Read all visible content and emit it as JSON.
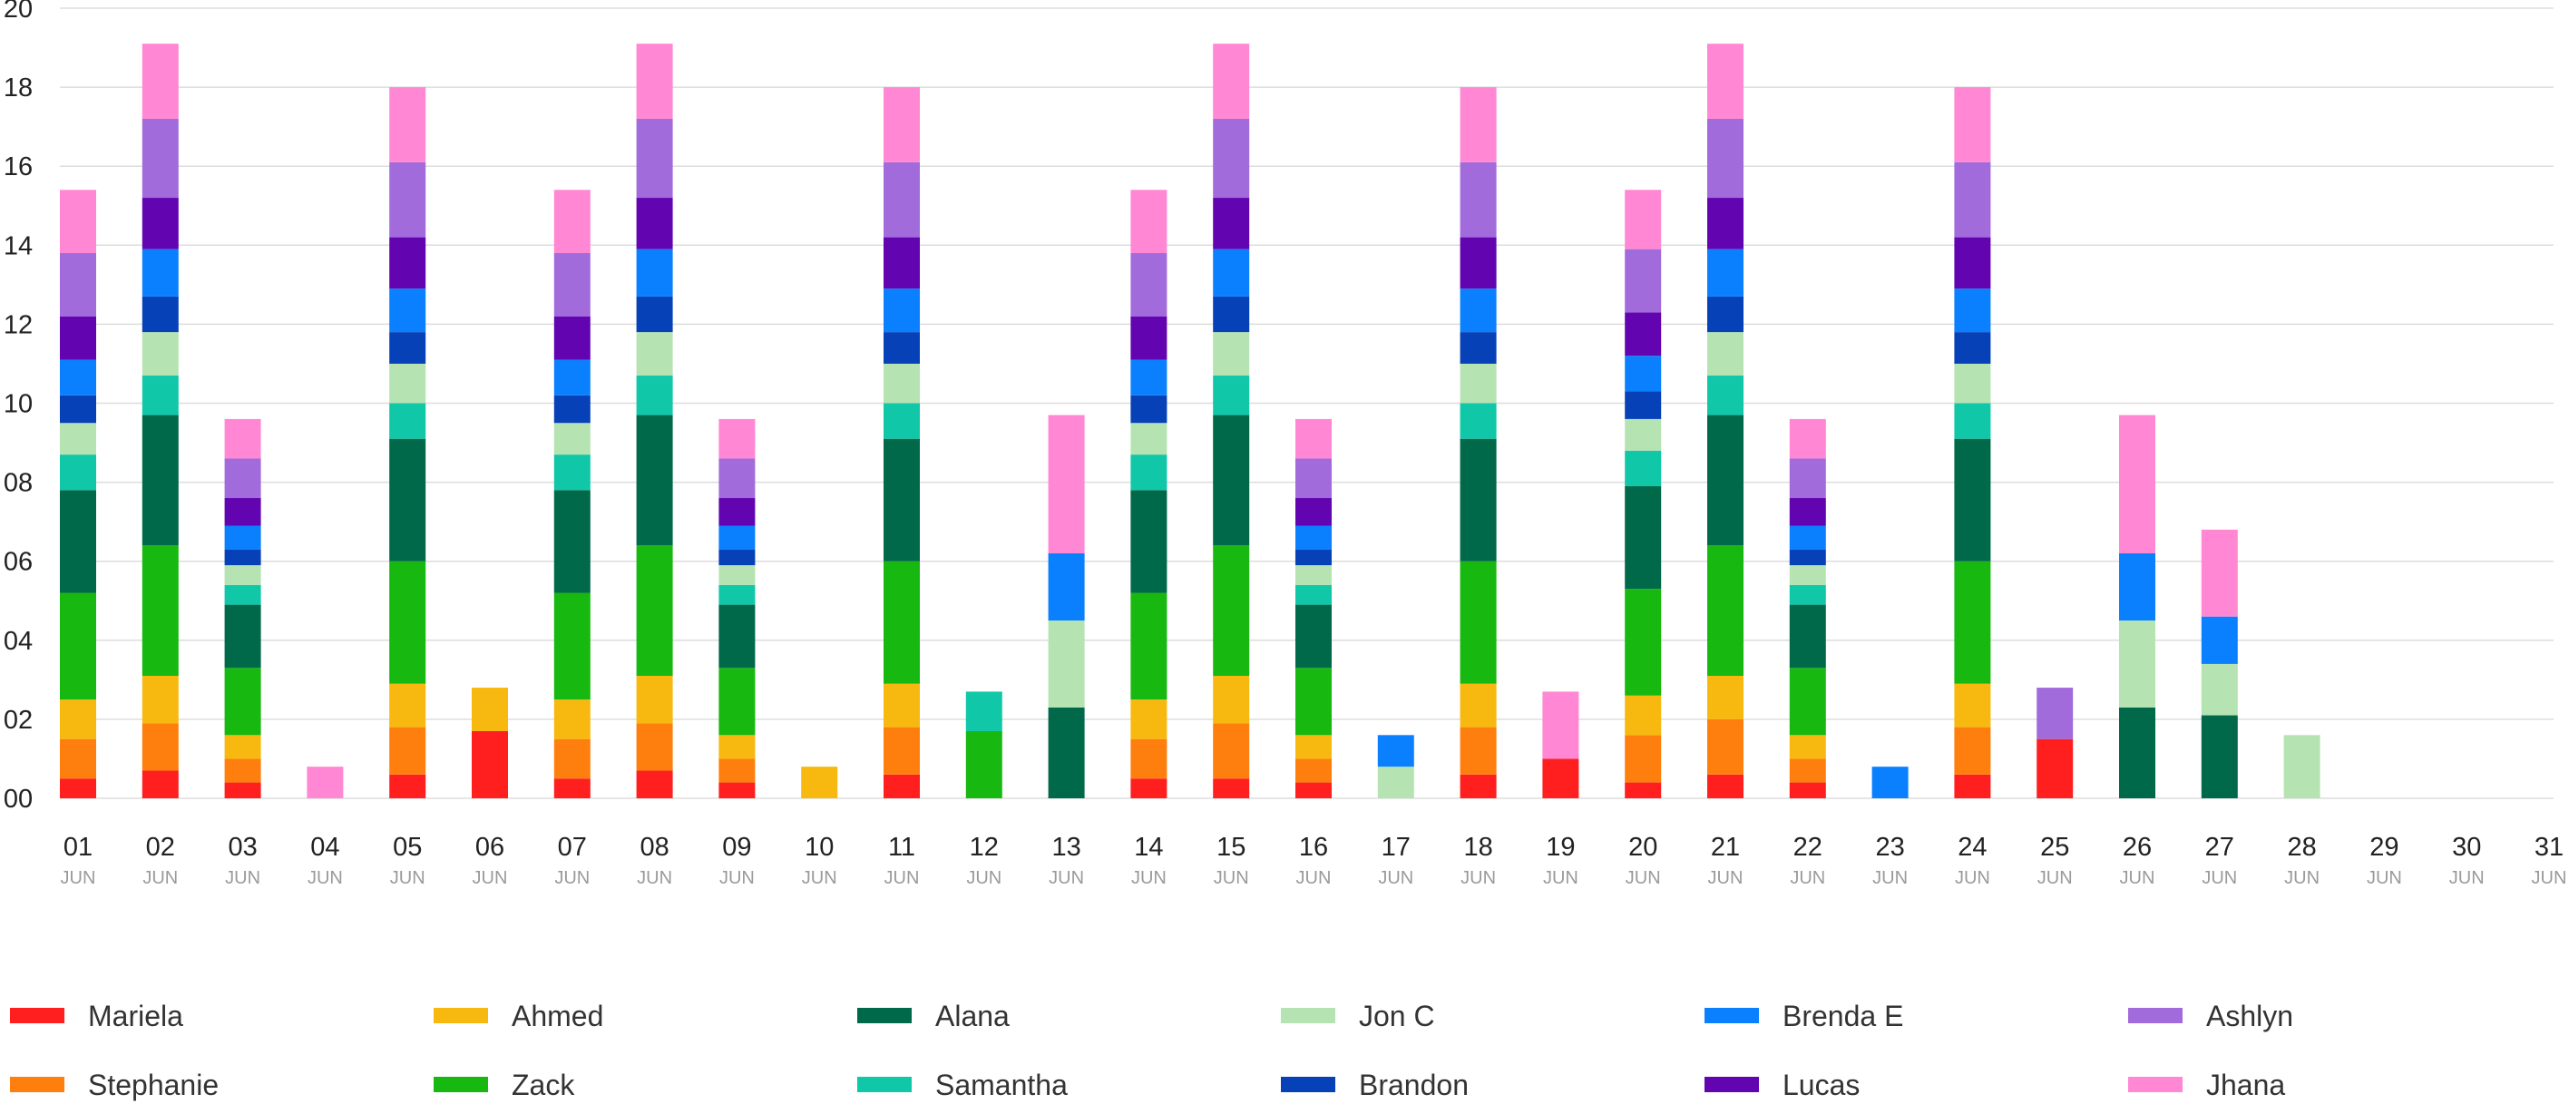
{
  "chart_data": {
    "type": "bar",
    "stacked": true,
    "title": "",
    "xlabel": "",
    "ylabel": "",
    "ylim": [
      0,
      20
    ],
    "y_ticks": [
      "00",
      "02",
      "04",
      "06",
      "08",
      "10",
      "12",
      "14",
      "16",
      "18",
      "20"
    ],
    "grid": true,
    "legend_position": "bottom",
    "month_label": "JUN",
    "categories": [
      "01",
      "02",
      "03",
      "04",
      "05",
      "06",
      "07",
      "08",
      "09",
      "10",
      "11",
      "12",
      "13",
      "14",
      "15",
      "16",
      "17",
      "18",
      "19",
      "20",
      "21",
      "22",
      "23",
      "24",
      "25",
      "26",
      "27",
      "28",
      "29",
      "30",
      "31"
    ],
    "series": [
      {
        "name": "Mariela",
        "color": "#ff1f1f",
        "values": [
          0.5,
          0.7,
          0.4,
          0,
          0.6,
          1.7,
          0.5,
          0.7,
          0.4,
          0,
          0.6,
          0,
          0,
          0.5,
          0.5,
          0.4,
          0,
          0.6,
          1.0,
          0.4,
          0.6,
          0.4,
          0,
          0.6,
          1.5,
          0,
          0,
          0,
          0,
          0,
          0
        ]
      },
      {
        "name": "Stephanie",
        "color": "#ff7f0e",
        "values": [
          1.0,
          1.2,
          0.6,
          0,
          1.2,
          0,
          1.0,
          1.2,
          0.6,
          0,
          1.2,
          0,
          0,
          1.0,
          1.4,
          0.6,
          0,
          1.2,
          0,
          1.2,
          1.4,
          0.6,
          0,
          1.2,
          0,
          0,
          0,
          0,
          0,
          0,
          0
        ]
      },
      {
        "name": "Ahmed",
        "color": "#f7b90f",
        "values": [
          1.0,
          1.2,
          0.6,
          0,
          1.1,
          1.1,
          1.0,
          1.2,
          0.6,
          0.8,
          1.1,
          0,
          0,
          1.0,
          1.2,
          0.6,
          0,
          1.1,
          0,
          1.0,
          1.1,
          0.6,
          0,
          1.1,
          0,
          0,
          0,
          0,
          0,
          0,
          0
        ]
      },
      {
        "name": "Zack",
        "color": "#17b80f",
        "values": [
          2.7,
          3.3,
          1.7,
          0,
          3.1,
          0,
          2.7,
          3.3,
          1.7,
          0,
          3.1,
          1.7,
          0,
          2.7,
          3.3,
          1.7,
          0,
          3.1,
          0,
          2.7,
          3.3,
          1.7,
          0,
          3.1,
          0,
          0,
          0,
          0,
          0,
          0,
          0
        ]
      },
      {
        "name": "Alana",
        "color": "#00694a",
        "values": [
          2.6,
          3.3,
          1.6,
          0,
          3.1,
          0,
          2.6,
          3.3,
          1.6,
          0,
          3.1,
          0,
          2.3,
          2.6,
          3.3,
          1.6,
          0,
          3.1,
          0,
          2.6,
          3.3,
          1.6,
          0,
          3.1,
          0,
          2.3,
          2.1,
          0,
          0,
          0,
          0
        ]
      },
      {
        "name": "Samantha",
        "color": "#10c7a8",
        "values": [
          0.9,
          1.0,
          0.5,
          0,
          0.9,
          0,
          0.9,
          1.0,
          0.5,
          0,
          0.9,
          1.0,
          0,
          0.9,
          1.0,
          0.5,
          0,
          0.9,
          0,
          0.9,
          1.0,
          0.5,
          0,
          0.9,
          0,
          0,
          0,
          0,
          0,
          0,
          0
        ]
      },
      {
        "name": "Jon C",
        "color": "#b6e3b2",
        "values": [
          0.8,
          1.1,
          0.5,
          0,
          1.0,
          0,
          0.8,
          1.1,
          0.5,
          0,
          1.0,
          0,
          2.2,
          0.8,
          1.1,
          0.5,
          0.8,
          1.0,
          0,
          0.8,
          1.1,
          0.5,
          0,
          1.0,
          0,
          2.2,
          1.3,
          1.6,
          0,
          0,
          0
        ]
      },
      {
        "name": "Brandon",
        "color": "#0741b8",
        "values": [
          0.7,
          0.9,
          0.4,
          0,
          0.8,
          0,
          0.7,
          0.9,
          0.4,
          0,
          0.8,
          0,
          0,
          0.7,
          0.9,
          0.4,
          0,
          0.8,
          0,
          0.7,
          0.9,
          0.4,
          0,
          0.8,
          0,
          0,
          0,
          0,
          0,
          0,
          0
        ]
      },
      {
        "name": "Brenda E",
        "color": "#0a80ff",
        "values": [
          0.9,
          1.2,
          0.6,
          0,
          1.1,
          0,
          0.9,
          1.2,
          0.6,
          0,
          1.1,
          0,
          1.7,
          0.9,
          1.2,
          0.6,
          0.8,
          1.1,
          0,
          0.9,
          1.2,
          0.6,
          0.8,
          1.1,
          0,
          1.7,
          1.2,
          0,
          0,
          0,
          0
        ]
      },
      {
        "name": "Lucas",
        "color": "#6205b0",
        "values": [
          1.1,
          1.3,
          0.7,
          0,
          1.3,
          0,
          1.1,
          1.3,
          0.7,
          0,
          1.3,
          0,
          0,
          1.1,
          1.3,
          0.7,
          0,
          1.3,
          0,
          1.1,
          1.3,
          0.7,
          0,
          1.3,
          0,
          0,
          0,
          0,
          0,
          0,
          0
        ]
      },
      {
        "name": "Ashlyn",
        "color": "#a26bdb",
        "values": [
          1.6,
          2.0,
          1.0,
          0,
          1.9,
          0,
          1.6,
          2.0,
          1.0,
          0,
          1.9,
          0,
          0,
          1.6,
          2.0,
          1.0,
          0,
          1.9,
          0,
          1.6,
          2.0,
          1.0,
          0,
          1.9,
          1.3,
          0,
          0,
          0,
          0,
          0,
          0
        ]
      },
      {
        "name": "Jhana",
        "color": "#ff87d4",
        "values": [
          1.6,
          1.9,
          1.0,
          0.8,
          1.9,
          0,
          1.6,
          1.9,
          1.0,
          0,
          1.9,
          0,
          3.5,
          1.6,
          1.9,
          1.0,
          0,
          1.9,
          1.7,
          1.5,
          1.9,
          1.0,
          0,
          1.9,
          0,
          3.5,
          2.2,
          0,
          0,
          0,
          0
        ]
      }
    ]
  }
}
